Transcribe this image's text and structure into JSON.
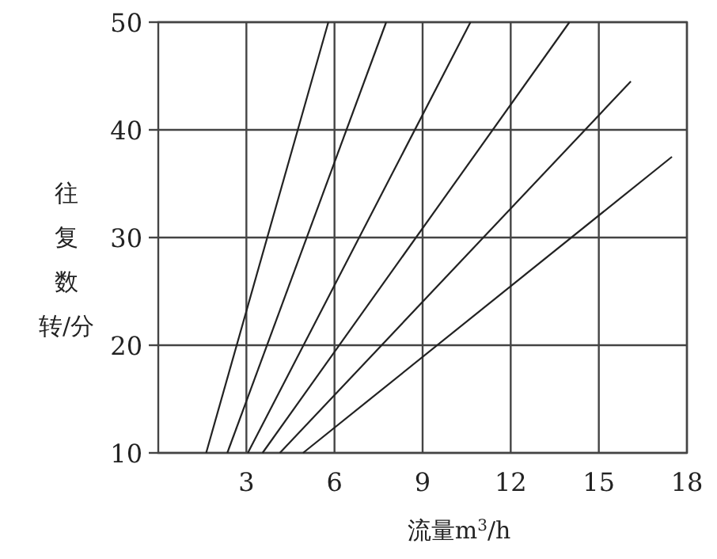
{
  "chart_data": {
    "type": "line",
    "xlabel": "流量m$^{3}$/h",
    "ylabel": "往复数转/分",
    "xlim": [
      0,
      18
    ],
    "ylim": [
      10,
      50
    ],
    "xticks": [
      3,
      6,
      9,
      12,
      15,
      18
    ],
    "yticks": [
      10,
      20,
      30,
      40,
      50
    ],
    "grid": true,
    "marker": "none",
    "line_style": "solid",
    "series": [
      {
        "color": "#222222",
        "x": [
          1.63,
          5.79
        ],
        "values": [
          10,
          50
        ]
      },
      {
        "color": "#222222",
        "x": [
          2.35,
          7.76
        ],
        "values": [
          10,
          50
        ]
      },
      {
        "color": "#222222",
        "x": [
          3.05,
          10.63
        ],
        "values": [
          10,
          50
        ]
      },
      {
        "color": "#222222",
        "x": [
          3.55,
          14.0
        ],
        "values": [
          10,
          50
        ]
      },
      {
        "color": "#222222",
        "x": [
          4.14,
          16.09
        ],
        "values": [
          10,
          44.5
        ]
      },
      {
        "color": "#222222",
        "x": [
          4.93,
          17.49
        ],
        "values": [
          10,
          37.5
        ]
      }
    ]
  }
}
